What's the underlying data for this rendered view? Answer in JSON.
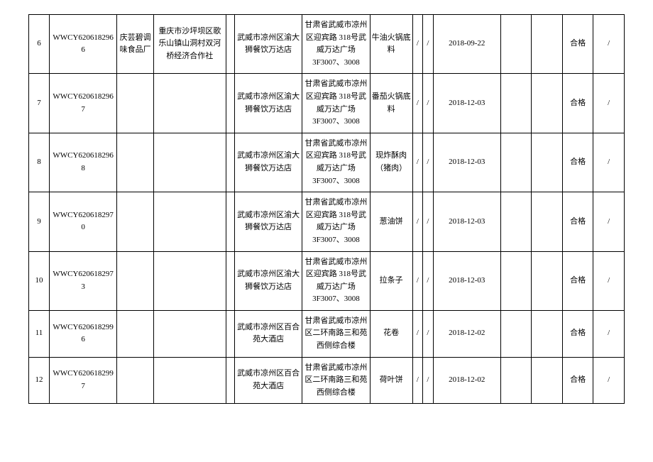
{
  "table": {
    "rows": [
      {
        "seq": "6",
        "code": "WWCY6206182966",
        "manufacturer": "庆芸碧调味食品厂",
        "manufacturerAddr": "重庆市沙坪坝区歌乐山镇山洞村双河桥经济合作社",
        "space1": "",
        "vendor": "武威市凉州区渝大狮餐饮万达店",
        "address": "甘肃省武威市凉州区迎宾路 318号武威万达广场3F3007、3008",
        "product": "牛油火锅底料",
        "s1": "/",
        "s2": "/",
        "date": "2018-09-22",
        "gap1": "",
        "gap2": "",
        "result": "合格",
        "last": "/"
      },
      {
        "seq": "7",
        "code": "WWCY6206182967",
        "manufacturer": "",
        "manufacturerAddr": "",
        "space1": "",
        "vendor": "武威市凉州区渝大狮餐饮万达店",
        "address": "甘肃省武威市凉州区迎宾路 318号武威万达广场3F3007、3008",
        "product": "番茄火锅底料",
        "s1": "/",
        "s2": "/",
        "date": "2018-12-03",
        "gap1": "",
        "gap2": "",
        "result": "合格",
        "last": "/"
      },
      {
        "seq": "8",
        "code": "WWCY6206182968",
        "manufacturer": "",
        "manufacturerAddr": "",
        "space1": "",
        "vendor": "武威市凉州区渝大狮餐饮万达店",
        "address": "甘肃省武威市凉州区迎宾路 318号武威万达广场3F3007、3008",
        "product": "现炸酥肉（猪肉）",
        "s1": "/",
        "s2": "/",
        "date": "2018-12-03",
        "gap1": "",
        "gap2": "",
        "result": "合格",
        "last": "/"
      },
      {
        "seq": "9",
        "code": "WWCY6206182970",
        "manufacturer": "",
        "manufacturerAddr": "",
        "space1": "",
        "vendor": "武威市凉州区渝大狮餐饮万达店",
        "address": "甘肃省武威市凉州区迎宾路 318号武威万达广场3F3007、3008",
        "product": "葱油饼",
        "s1": "/",
        "s2": "/",
        "date": "2018-12-03",
        "gap1": "",
        "gap2": "",
        "result": "合格",
        "last": "/"
      },
      {
        "seq": "10",
        "code": "WWCY6206182973",
        "manufacturer": "",
        "manufacturerAddr": "",
        "space1": "",
        "vendor": "武威市凉州区渝大狮餐饮万达店",
        "address": "甘肃省武威市凉州区迎宾路 318号武威万达广场3F3007、3008",
        "product": "拉条子",
        "s1": "/",
        "s2": "/",
        "date": "2018-12-03",
        "gap1": "",
        "gap2": "",
        "result": "合格",
        "last": "/"
      },
      {
        "seq": "11",
        "code": "WWCY6206182996",
        "manufacturer": "",
        "manufacturerAddr": "",
        "space1": "",
        "vendor": "武威市凉州区百合苑大酒店",
        "address": "甘肃省武威市凉州区二环南路三和苑西侧综合楼",
        "product": "花卷",
        "s1": "/",
        "s2": "/",
        "date": "2018-12-02",
        "gap1": "",
        "gap2": "",
        "result": "合格",
        "last": "/"
      },
      {
        "seq": "12",
        "code": "WWCY6206182997",
        "manufacturer": "",
        "manufacturerAddr": "",
        "space1": "",
        "vendor": "武威市凉州区百合苑大酒店",
        "address": "甘肃省武威市凉州区二环南路三和苑西侧综合楼",
        "product": "荷叶饼",
        "s1": "/",
        "s2": "/",
        "date": "2018-12-02",
        "gap1": "",
        "gap2": "",
        "result": "合格",
        "last": "/"
      }
    ],
    "colClasses": [
      "col-seq",
      "col-code",
      "col-mfr",
      "col-mfr-addr",
      "col-space1",
      "col-vendor",
      "col-addr",
      "col-prod",
      "col-s1",
      "col-s2",
      "col-date",
      "col-gap1",
      "col-gap2",
      "col-result",
      "col-last"
    ],
    "fields": [
      "seq",
      "code",
      "manufacturer",
      "manufacturerAddr",
      "space1",
      "vendor",
      "address",
      "product",
      "s1",
      "s2",
      "date",
      "gap1",
      "gap2",
      "result",
      "last"
    ]
  }
}
